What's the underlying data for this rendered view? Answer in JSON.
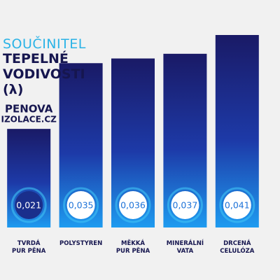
{
  "chart_data": {
    "type": "bar",
    "title": "SOUČINITEL",
    "subtitle": "TEPELNÉ VODIVOSTI (λ)",
    "annotations": [
      "PENOVA",
      "IZOLACE.CZ"
    ],
    "categories": [
      "TVRDÁ\nPUR PĚNA",
      "POLYSTYREN",
      "MĚKKÁ\nPUR PĚNA",
      "MINERÁLNÍ\nVATA",
      "DRCENÁ\nCELULÓZA"
    ],
    "values": [
      0.021,
      0.035,
      0.036,
      0.037,
      0.041
    ],
    "value_labels": [
      "0,021",
      "0,035",
      "0,036",
      "0,037",
      "0,041"
    ],
    "color": "#1d3aa8",
    "highlight": 0
  }
}
